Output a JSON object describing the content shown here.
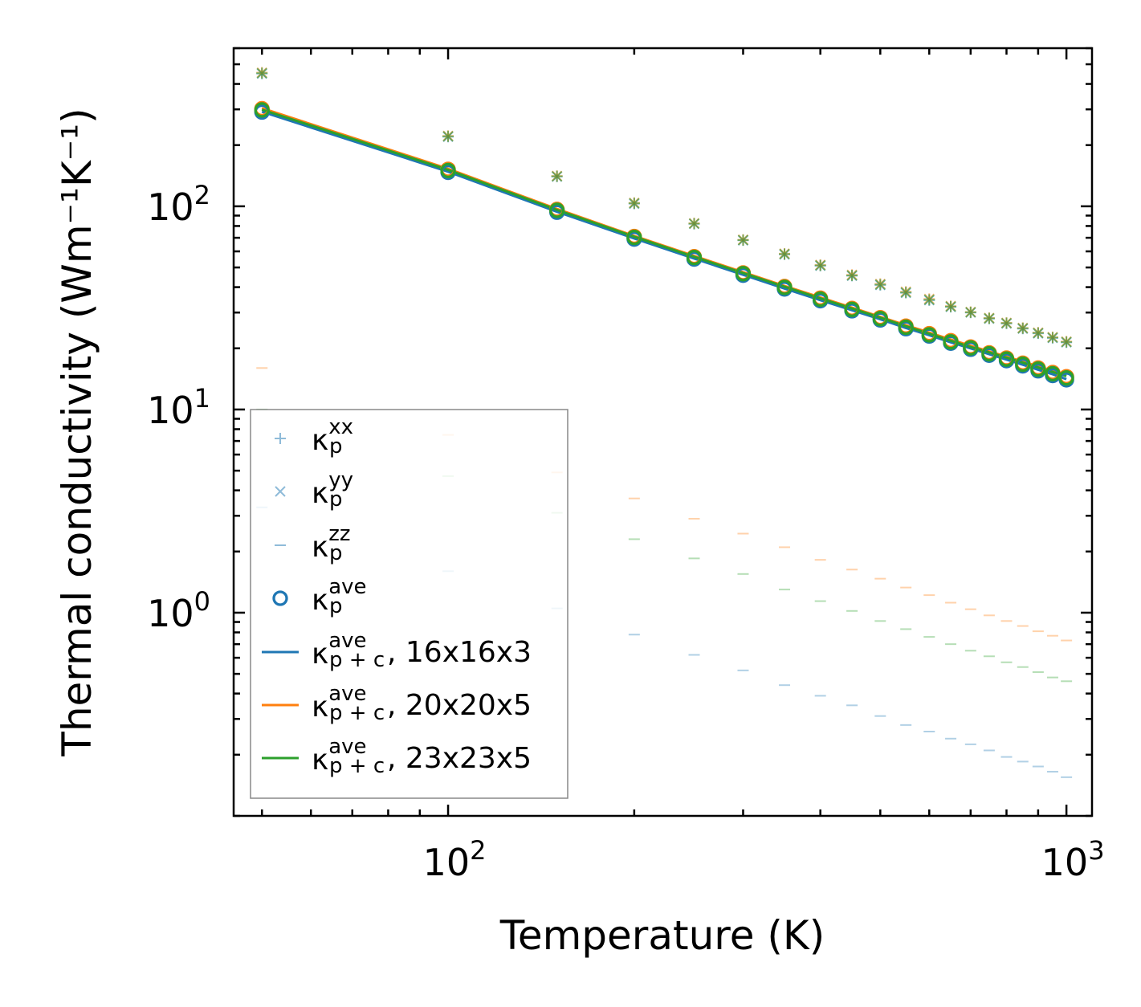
{
  "chart_data": {
    "type": "scatter",
    "xscale": "log",
    "yscale": "log",
    "xlabel": "Temperature (K)",
    "ylabel": "Thermal conductivity (Wm⁻¹K⁻¹)",
    "xlim": [
      45,
      1100
    ],
    "ylim": [
      0.1,
      600
    ],
    "x_ticks": [
      {
        "value": 100,
        "base": "10",
        "exp": "2"
      },
      {
        "value": 1000,
        "base": "10",
        "exp": "3"
      }
    ],
    "y_ticks": [
      {
        "value": 1,
        "base": "10",
        "exp": "0"
      },
      {
        "value": 10,
        "base": "10",
        "exp": "1"
      },
      {
        "value": 100,
        "base": "10",
        "exp": "2"
      }
    ],
    "x": [
      50,
      100,
      150,
      200,
      250,
      300,
      350,
      400,
      450,
      500,
      550,
      600,
      650,
      700,
      750,
      800,
      850,
      900,
      950,
      1000
    ],
    "colors": {
      "blue": "#1f77b4",
      "orange": "#ff7f0e",
      "green": "#2ca02c"
    },
    "series": [
      {
        "name": "kappa_p_xx",
        "marker": "plus",
        "alpha": 0.5,
        "groups": [
          {
            "color": "#1f77b4",
            "values": [
              450,
              220,
              140,
              103,
              82,
              68,
              58,
              51,
              45.5,
              41,
              37.5,
              34.5,
              32,
              30,
              28,
              26.5,
              25,
              23.7,
              22.5,
              21.4
            ]
          },
          {
            "color": "#ff7f0e",
            "values": [
              455,
              222,
              141,
              104,
              82.5,
              68.5,
              58.5,
              51.5,
              46,
              41.5,
              38,
              35,
              32.3,
              30.2,
              28.2,
              26.7,
              25.2,
              23.9,
              22.7,
              21.6
            ]
          },
          {
            "color": "#2ca02c",
            "values": [
              452,
              221,
              140.5,
              103.5,
              82.2,
              68.2,
              58.2,
              51.2,
              45.7,
              41.2,
              37.7,
              34.7,
              32.1,
              30.1,
              28.1,
              26.6,
              25.1,
              23.8,
              22.6,
              21.5
            ]
          }
        ]
      },
      {
        "name": "kappa_p_yy",
        "marker": "x",
        "alpha": 0.5,
        "groups": [
          {
            "color": "#1f77b4",
            "values": [
              450,
              220,
              140,
              103,
              82,
              68,
              58,
              51,
              45.5,
              41,
              37.5,
              34.5,
              32,
              30,
              28,
              26.5,
              25,
              23.7,
              22.5,
              21.4
            ]
          },
          {
            "color": "#ff7f0e",
            "values": [
              455,
              222,
              141,
              104,
              82.5,
              68.5,
              58.5,
              51.5,
              46,
              41.5,
              38,
              35,
              32.3,
              30.2,
              28.2,
              26.7,
              25.2,
              23.9,
              22.7,
              21.6
            ]
          },
          {
            "color": "#2ca02c",
            "values": [
              452,
              221,
              140.5,
              103.5,
              82.2,
              68.2,
              58.2,
              51.2,
              45.7,
              41.2,
              37.7,
              34.7,
              32.1,
              30.1,
              28.1,
              26.6,
              25.1,
              23.8,
              22.6,
              21.5
            ]
          }
        ]
      },
      {
        "name": "kappa_p_zz",
        "marker": "hline",
        "alpha": 0.35,
        "groups": [
          {
            "color": "#1f77b4",
            "values": [
              3.3,
              1.6,
              1.05,
              0.78,
              0.62,
              0.52,
              0.44,
              0.39,
              0.35,
              0.31,
              0.28,
              0.26,
              0.24,
              0.225,
              0.21,
              0.195,
              0.185,
              0.175,
              0.165,
              0.155
            ]
          },
          {
            "color": "#ff7f0e",
            "values": [
              16,
              7.5,
              4.9,
              3.65,
              2.9,
              2.45,
              2.1,
              1.82,
              1.63,
              1.47,
              1.33,
              1.22,
              1.12,
              1.04,
              0.97,
              0.91,
              0.86,
              0.81,
              0.77,
              0.73
            ]
          },
          {
            "color": "#2ca02c",
            "values": [
              10,
              4.7,
              3.1,
              2.3,
              1.85,
              1.55,
              1.3,
              1.14,
              1.02,
              0.91,
              0.83,
              0.76,
              0.7,
              0.65,
              0.61,
              0.57,
              0.54,
              0.51,
              0.48,
              0.46
            ]
          }
        ]
      },
      {
        "name": "kappa_p_ave",
        "marker": "circle",
        "alpha": 1,
        "groups": [
          {
            "color": "#1f77b4",
            "values": [
              291,
              147,
              93.5,
              69,
              55,
              45.8,
              39.2,
              34.3,
              30.6,
              27.6,
              25,
              23,
              21.2,
              19.8,
              18.5,
              17.4,
              16.4,
              15.5,
              14.7,
              14
            ]
          },
          {
            "color": "#ff7f0e",
            "values": [
              302,
              152,
              96.5,
              71,
              56.5,
              47,
              40.3,
              35.3,
              31.4,
              28.3,
              25.7,
              23.6,
              21.8,
              20.3,
              19,
              17.9,
              16.9,
              16,
              15.2,
              14.5
            ]
          },
          {
            "color": "#2ca02c",
            "values": [
              298,
              150,
              95.5,
              70.3,
              56,
              46.6,
              39.9,
              34.9,
              31.1,
              28,
              25.4,
              23.3,
              21.5,
              20.1,
              18.8,
              17.7,
              16.7,
              15.8,
              15,
              14.3
            ]
          }
        ]
      },
      {
        "name": "kappa_pc_ave_16x16x3",
        "marker": "line",
        "color": "#1f77b4",
        "values": [
          292,
          148,
          94,
          69.5,
          55.3,
          46,
          39.4,
          34.5,
          30.8,
          27.8,
          25.2,
          23.2,
          21.4,
          20,
          18.7,
          17.6,
          16.6,
          15.7,
          14.9,
          14.1
        ]
      },
      {
        "name": "kappa_pc_ave_20x20x5",
        "marker": "line",
        "color": "#ff7f0e",
        "values": [
          304,
          153,
          97,
          71.5,
          57,
          47.4,
          40.6,
          35.6,
          31.7,
          28.6,
          26,
          23.9,
          22.1,
          20.6,
          19.3,
          18.2,
          17.2,
          16.3,
          15.5,
          14.8
        ]
      },
      {
        "name": "kappa_pc_ave_23x23x5",
        "marker": "line",
        "color": "#2ca02c",
        "values": [
          299,
          151,
          96,
          70.8,
          56.4,
          46.9,
          40.2,
          35.2,
          31.4,
          28.3,
          25.7,
          23.6,
          21.8,
          20.3,
          19.1,
          18,
          17,
          16.1,
          15.3,
          14.6
        ]
      }
    ],
    "legend": {
      "position": "lower-left",
      "entries": [
        {
          "marker": "plus",
          "color": "#1f77b4",
          "alpha": 0.5,
          "sym": "κ",
          "sub": "p",
          "sup": "xx",
          "suffix": ""
        },
        {
          "marker": "x",
          "color": "#1f77b4",
          "alpha": 0.5,
          "sym": "κ",
          "sub": "p",
          "sup": "yy",
          "suffix": ""
        },
        {
          "marker": "hline",
          "color": "#1f77b4",
          "alpha": 0.5,
          "sym": "κ",
          "sub": "p",
          "sup": "zz",
          "suffix": ""
        },
        {
          "marker": "circle",
          "color": "#1f77b4",
          "alpha": 1,
          "sym": "κ",
          "sub": "p",
          "sup": "ave",
          "suffix": ""
        },
        {
          "marker": "line",
          "color": "#1f77b4",
          "alpha": 1,
          "sym": "κ",
          "sub": "p + c",
          "sup": "ave",
          "suffix": ", 16x16x3"
        },
        {
          "marker": "line",
          "color": "#ff7f0e",
          "alpha": 1,
          "sym": "κ",
          "sub": "p + c",
          "sup": "ave",
          "suffix": ", 20x20x5"
        },
        {
          "marker": "line",
          "color": "#2ca02c",
          "alpha": 1,
          "sym": "κ",
          "sub": "p + c",
          "sup": "ave",
          "suffix": ", 23x23x5"
        }
      ]
    }
  }
}
